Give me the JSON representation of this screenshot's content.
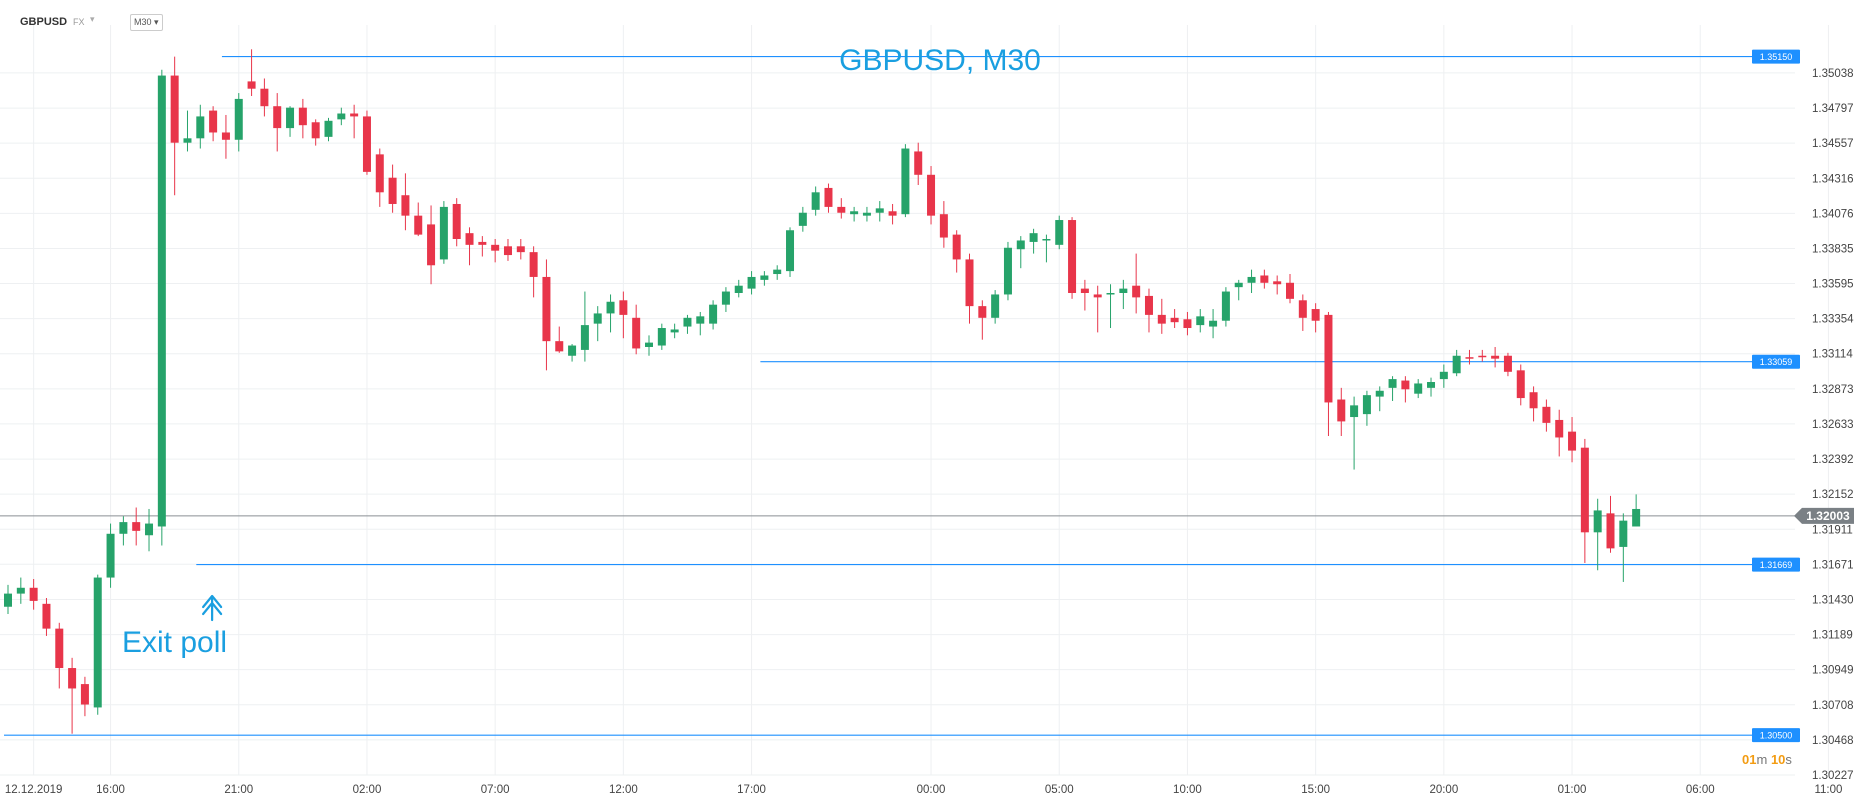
{
  "toolbar": {
    "symbol": "GBPUSD",
    "market": "FX",
    "caret": "▾",
    "timeframe": "M30",
    "timeframe_caret": "▾"
  },
  "countdown": {
    "minutes": "01",
    "m": "m",
    "seconds": "10",
    "s": "s"
  },
  "colors": {
    "up": "#26a36a",
    "down": "#e8354a",
    "level": "#1e90ff",
    "price_line": "#8a8f94",
    "grid": "#eef0f2",
    "text_blue": "#1a9fe0"
  },
  "chart_data": {
    "type": "candlestick",
    "title": "GBPUSD, M30",
    "annotation": {
      "text": "Exit poll",
      "icon": "up-arrow-icon",
      "candle_index": 16
    },
    "current_price": {
      "value": 1.32003,
      "label": "1.32003"
    },
    "levels": [
      {
        "value": 1.3515,
        "label": "1.35150",
        "x_start": 17
      },
      {
        "value": 1.33059,
        "label": "1.33059",
        "x_start": 59
      },
      {
        "value": 1.31669,
        "label": "1.31669",
        "x_start": 15
      },
      {
        "value": 1.305,
        "label": "1.30500",
        "x_start": 0
      }
    ],
    "y_range": [
      1.30227,
      1.3525
    ],
    "y_ticks": [
      "1.35038",
      "1.34797",
      "1.34557",
      "1.34316",
      "1.34076",
      "1.33835",
      "1.33595",
      "1.33354",
      "1.33114",
      "1.32873",
      "1.32633",
      "1.32392",
      "1.32152",
      "1.31911",
      "1.31671",
      "1.31430",
      "1.31189",
      "1.30949",
      "1.30708",
      "1.30468",
      "1.30227"
    ],
    "x_ticks": [
      {
        "label": "12.12.2019",
        "index": 2
      },
      {
        "label": "16:00",
        "index": 8
      },
      {
        "label": "21:00",
        "index": 18
      },
      {
        "label": "02:00",
        "index": 28
      },
      {
        "label": "07:00",
        "index": 38
      },
      {
        "label": "12:00",
        "index": 48
      },
      {
        "label": "17:00",
        "index": 58
      },
      {
        "label": "00:00",
        "index": 72
      },
      {
        "label": "05:00",
        "index": 82
      },
      {
        "label": "10:00",
        "index": 92
      },
      {
        "label": "15:00",
        "index": 102
      },
      {
        "label": "20:00",
        "index": 112
      },
      {
        "label": "01:00",
        "index": 122
      },
      {
        "label": "06:00",
        "index": 132
      },
      {
        "label": "11:00",
        "index": 142
      }
    ],
    "candles": [
      [
        1.3138,
        1.3153,
        1.3133,
        1.3147
      ],
      [
        1.3147,
        1.3158,
        1.314,
        1.3151
      ],
      [
        1.3151,
        1.3157,
        1.3136,
        1.3142
      ],
      [
        1.314,
        1.3144,
        1.3118,
        1.3123
      ],
      [
        1.3123,
        1.3127,
        1.3082,
        1.3096
      ],
      [
        1.3096,
        1.3103,
        1.3051,
        1.3082
      ],
      [
        1.3085,
        1.309,
        1.3063,
        1.3071
      ],
      [
        1.3069,
        1.316,
        1.3064,
        1.3158
      ],
      [
        1.3158,
        1.3195,
        1.3151,
        1.3188
      ],
      [
        1.3188,
        1.32,
        1.318,
        1.3196
      ],
      [
        1.3196,
        1.3206,
        1.318,
        1.319
      ],
      [
        1.3187,
        1.3205,
        1.3176,
        1.3195
      ],
      [
        1.3193,
        1.3506,
        1.318,
        1.3502
      ],
      [
        1.3502,
        1.3515,
        1.342,
        1.3456
      ],
      [
        1.3456,
        1.3478,
        1.345,
        1.3459
      ],
      [
        1.3459,
        1.3482,
        1.3452,
        1.3474
      ],
      [
        1.3478,
        1.3481,
        1.3457,
        1.3463
      ],
      [
        1.3463,
        1.3475,
        1.3445,
        1.3458
      ],
      [
        1.3458,
        1.349,
        1.345,
        1.3486
      ],
      [
        1.3498,
        1.352,
        1.3488,
        1.3493
      ],
      [
        1.3493,
        1.35,
        1.3474,
        1.3481
      ],
      [
        1.3481,
        1.349,
        1.345,
        1.3466
      ],
      [
        1.3466,
        1.3481,
        1.346,
        1.348
      ],
      [
        1.348,
        1.3486,
        1.3459,
        1.3468
      ],
      [
        1.347,
        1.3472,
        1.3454,
        1.3459
      ],
      [
        1.346,
        1.3473,
        1.3457,
        1.3471
      ],
      [
        1.3472,
        1.348,
        1.3468,
        1.3476
      ],
      [
        1.3476,
        1.3482,
        1.3459,
        1.3474
      ],
      [
        1.3474,
        1.3478,
        1.3434,
        1.3436
      ],
      [
        1.3448,
        1.3452,
        1.3412,
        1.3422
      ],
      [
        1.3432,
        1.3441,
        1.3408,
        1.3414
      ],
      [
        1.342,
        1.3435,
        1.3396,
        1.3406
      ],
      [
        1.3406,
        1.3415,
        1.3392,
        1.3393
      ],
      [
        1.34,
        1.3413,
        1.3359,
        1.3372
      ],
      [
        1.3376,
        1.3416,
        1.3373,
        1.3412
      ],
      [
        1.3414,
        1.3418,
        1.3385,
        1.339
      ],
      [
        1.3394,
        1.3398,
        1.3372,
        1.3386
      ],
      [
        1.3388,
        1.3392,
        1.3378,
        1.3386
      ],
      [
        1.3386,
        1.339,
        1.3374,
        1.3382
      ],
      [
        1.3385,
        1.339,
        1.3375,
        1.3379
      ],
      [
        1.3385,
        1.339,
        1.3376,
        1.3381
      ],
      [
        1.3381,
        1.3385,
        1.335,
        1.3364
      ],
      [
        1.3364,
        1.3376,
        1.33,
        1.332
      ],
      [
        1.332,
        1.333,
        1.3312,
        1.3313
      ],
      [
        1.331,
        1.3318,
        1.3306,
        1.3317
      ],
      [
        1.3314,
        1.3354,
        1.3306,
        1.3331
      ],
      [
        1.3332,
        1.3344,
        1.332,
        1.3339
      ],
      [
        1.3339,
        1.3352,
        1.3326,
        1.3347
      ],
      [
        1.3348,
        1.3354,
        1.3322,
        1.3338
      ],
      [
        1.3336,
        1.3345,
        1.3311,
        1.3315
      ],
      [
        1.3316,
        1.3324,
        1.331,
        1.3319
      ],
      [
        1.3317,
        1.3332,
        1.3314,
        1.3329
      ],
      [
        1.3326,
        1.3332,
        1.3322,
        1.3328
      ],
      [
        1.333,
        1.3338,
        1.3325,
        1.3336
      ],
      [
        1.3332,
        1.334,
        1.3324,
        1.3337
      ],
      [
        1.3332,
        1.3348,
        1.3328,
        1.3345
      ],
      [
        1.3345,
        1.3357,
        1.334,
        1.3354
      ],
      [
        1.3353,
        1.3362,
        1.335,
        1.3358
      ],
      [
        1.3356,
        1.3368,
        1.3352,
        1.3364
      ],
      [
        1.3362,
        1.3368,
        1.3358,
        1.3365
      ],
      [
        1.3366,
        1.3372,
        1.3362,
        1.3369
      ],
      [
        1.3368,
        1.3398,
        1.3364,
        1.3396
      ],
      [
        1.3399,
        1.3412,
        1.3395,
        1.3408
      ],
      [
        1.341,
        1.3426,
        1.3406,
        1.3422
      ],
      [
        1.3425,
        1.3428,
        1.3408,
        1.3412
      ],
      [
        1.3412,
        1.3418,
        1.3404,
        1.3408
      ],
      [
        1.3407,
        1.3412,
        1.3402,
        1.3409
      ],
      [
        1.3406,
        1.3412,
        1.3402,
        1.3408
      ],
      [
        1.3408,
        1.3416,
        1.3402,
        1.3411
      ],
      [
        1.3409,
        1.3414,
        1.34,
        1.3406
      ],
      [
        1.3407,
        1.3455,
        1.3405,
        1.3452
      ],
      [
        1.345,
        1.3456,
        1.3427,
        1.3434
      ],
      [
        1.3434,
        1.344,
        1.34,
        1.3406
      ],
      [
        1.3407,
        1.3416,
        1.3384,
        1.3391
      ],
      [
        1.3393,
        1.3396,
        1.3367,
        1.3376
      ],
      [
        1.3376,
        1.338,
        1.3332,
        1.3344
      ],
      [
        1.3344,
        1.3348,
        1.3321,
        1.3336
      ],
      [
        1.3336,
        1.3355,
        1.3332,
        1.3352
      ],
      [
        1.3352,
        1.3388,
        1.3348,
        1.3384
      ],
      [
        1.3383,
        1.3392,
        1.337,
        1.3389
      ],
      [
        1.3388,
        1.3397,
        1.338,
        1.3394
      ],
      [
        1.3389,
        1.3393,
        1.3374,
        1.339
      ],
      [
        1.3386,
        1.3406,
        1.3383,
        1.3403
      ],
      [
        1.3403,
        1.3405,
        1.3349,
        1.3353
      ],
      [
        1.3356,
        1.3362,
        1.3341,
        1.3353
      ],
      [
        1.3352,
        1.3358,
        1.3326,
        1.335
      ],
      [
        1.3352,
        1.3359,
        1.3329,
        1.3353
      ],
      [
        1.3353,
        1.3362,
        1.3342,
        1.3356
      ],
      [
        1.3358,
        1.338,
        1.3339,
        1.335
      ],
      [
        1.3351,
        1.3356,
        1.3326,
        1.3338
      ],
      [
        1.3338,
        1.3349,
        1.3325,
        1.3332
      ],
      [
        1.3336,
        1.3342,
        1.3329,
        1.3333
      ],
      [
        1.3335,
        1.334,
        1.3324,
        1.3329
      ],
      [
        1.3331,
        1.3342,
        1.3326,
        1.3337
      ],
      [
        1.333,
        1.3342,
        1.3322,
        1.3334
      ],
      [
        1.3334,
        1.3357,
        1.333,
        1.3354
      ],
      [
        1.3357,
        1.3362,
        1.3348,
        1.336
      ],
      [
        1.336,
        1.3369,
        1.3353,
        1.3364
      ],
      [
        1.3365,
        1.3369,
        1.3356,
        1.336
      ],
      [
        1.3361,
        1.3365,
        1.3352,
        1.3359
      ],
      [
        1.336,
        1.3366,
        1.3346,
        1.3349
      ],
      [
        1.3348,
        1.3352,
        1.3327,
        1.3336
      ],
      [
        1.3342,
        1.3346,
        1.3326,
        1.3334
      ],
      [
        1.3338,
        1.334,
        1.3255,
        1.3278
      ],
      [
        1.328,
        1.3288,
        1.3255,
        1.3265
      ],
      [
        1.3268,
        1.3282,
        1.3232,
        1.3276
      ],
      [
        1.327,
        1.3286,
        1.3262,
        1.3283
      ],
      [
        1.3282,
        1.3289,
        1.3272,
        1.3286
      ],
      [
        1.3288,
        1.3296,
        1.3279,
        1.3294
      ],
      [
        1.3293,
        1.3296,
        1.3278,
        1.3287
      ],
      [
        1.3284,
        1.3294,
        1.3281,
        1.3291
      ],
      [
        1.3288,
        1.3295,
        1.3282,
        1.3292
      ],
      [
        1.3294,
        1.3304,
        1.3288,
        1.3299
      ],
      [
        1.3298,
        1.3314,
        1.3296,
        1.331
      ],
      [
        1.3309,
        1.3314,
        1.3304,
        1.3308
      ],
      [
        1.331,
        1.3314,
        1.3306,
        1.3309
      ],
      [
        1.331,
        1.3316,
        1.3302,
        1.3308
      ],
      [
        1.331,
        1.3312,
        1.3296,
        1.3299
      ],
      [
        1.33,
        1.3304,
        1.3276,
        1.3281
      ],
      [
        1.3285,
        1.3289,
        1.3265,
        1.3274
      ],
      [
        1.3275,
        1.328,
        1.3258,
        1.3264
      ],
      [
        1.3266,
        1.3273,
        1.3241,
        1.3254
      ],
      [
        1.3258,
        1.3268,
        1.3237,
        1.3245
      ],
      [
        1.3247,
        1.3253,
        1.3168,
        1.3189
      ],
      [
        1.3189,
        1.3212,
        1.3163,
        1.3204
      ],
      [
        1.3202,
        1.3214,
        1.3175,
        1.3178
      ],
      [
        1.3179,
        1.3202,
        1.3155,
        1.3197
      ],
      [
        1.3193,
        1.3215,
        1.3193,
        1.3205
      ]
    ]
  }
}
